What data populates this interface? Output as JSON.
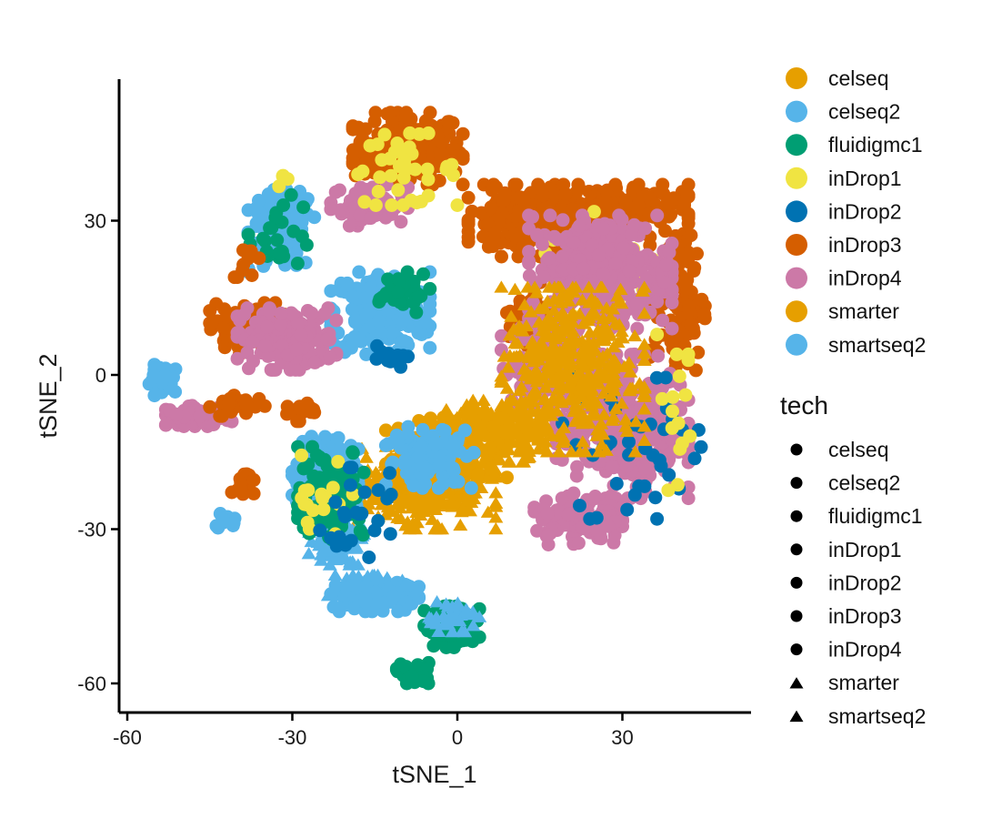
{
  "chart_data": {
    "type": "scatter",
    "xlabel": "tSNE_1",
    "ylabel": "tSNE_2",
    "xlim": [
      -62,
      52
    ],
    "ylim": [
      -66,
      58
    ],
    "x_ticks": [
      -60,
      -30,
      0,
      30
    ],
    "y_ticks": [
      -60,
      -30,
      0,
      30
    ],
    "x_tick_labels": [
      "-60",
      "-30",
      "0",
      "30"
    ],
    "y_tick_labels": [
      "-60",
      "-30",
      "0",
      "30"
    ],
    "grid": false,
    "legend_position": "right",
    "color_legend": {
      "title": "",
      "entries": [
        {
          "label": "celseq",
          "color": "#E69F00"
        },
        {
          "label": "celseq2",
          "color": "#56B4E9"
        },
        {
          "label": "fluidigmc1",
          "color": "#009E73"
        },
        {
          "label": "inDrop1",
          "color": "#F0E442"
        },
        {
          "label": "inDrop2",
          "color": "#0072B2"
        },
        {
          "label": "inDrop3",
          "color": "#D55E00"
        },
        {
          "label": "inDrop4",
          "color": "#CC79A7"
        },
        {
          "label": "smarter",
          "color": "#E69F00"
        },
        {
          "label": "smartseq2",
          "color": "#56B4E9"
        }
      ]
    },
    "shape_legend": {
      "title": "tech",
      "entries": [
        {
          "label": "celseq",
          "shape": "circle"
        },
        {
          "label": "celseq2",
          "shape": "circle"
        },
        {
          "label": "fluidigmc1",
          "shape": "circle"
        },
        {
          "label": "inDrop1",
          "shape": "circle"
        },
        {
          "label": "inDrop2",
          "shape": "circle"
        },
        {
          "label": "inDrop3",
          "shape": "circle"
        },
        {
          "label": "inDrop4",
          "shape": "circle"
        },
        {
          "label": "smarter",
          "shape": "triangle"
        },
        {
          "label": "smartseq2",
          "shape": "triangle"
        }
      ]
    },
    "clusters": [
      {
        "series": "inDrop3",
        "cx": -9,
        "cy": 44,
        "rx": 10,
        "ry": 7,
        "n": 220
      },
      {
        "series": "inDrop4",
        "cx": -16,
        "cy": 33,
        "rx": 7,
        "ry": 4,
        "n": 60
      },
      {
        "series": "inDrop1",
        "cx": -10,
        "cy": 40,
        "rx": 10,
        "ry": 7,
        "n": 40
      },
      {
        "series": "celseq2",
        "cx": -32,
        "cy": 28,
        "rx": 6,
        "ry": 8,
        "n": 150
      },
      {
        "series": "fluidigmc1",
        "cx": -32,
        "cy": 28,
        "rx": 6,
        "ry": 7,
        "n": 25
      },
      {
        "series": "inDrop3",
        "cx": -38,
        "cy": 22,
        "rx": 3,
        "ry": 3,
        "n": 10
      },
      {
        "series": "inDrop1",
        "cx": -31,
        "cy": 38,
        "rx": 2,
        "ry": 2,
        "n": 4
      },
      {
        "series": "celseq2",
        "cx": -14,
        "cy": 12,
        "rx": 9,
        "ry": 8,
        "n": 220
      },
      {
        "series": "fluidigmc1",
        "cx": -11,
        "cy": 16,
        "rx": 6,
        "ry": 4,
        "n": 35
      },
      {
        "series": "inDrop2",
        "cx": -13,
        "cy": 3,
        "rx": 4,
        "ry": 3,
        "n": 10
      },
      {
        "series": "inDrop3",
        "cx": -38,
        "cy": 9,
        "rx": 7,
        "ry": 5,
        "n": 90
      },
      {
        "series": "inDrop4",
        "cx": -31,
        "cy": 7,
        "rx": 9,
        "ry": 6,
        "n": 170
      },
      {
        "series": "celseq2",
        "cx": -53,
        "cy": -1,
        "rx": 3,
        "ry": 3,
        "n": 35
      },
      {
        "series": "inDrop4",
        "cx": -47,
        "cy": -8,
        "rx": 6,
        "ry": 2,
        "n": 60
      },
      {
        "series": "inDrop3",
        "cx": -40,
        "cy": -6,
        "rx": 5,
        "ry": 2,
        "n": 30
      },
      {
        "series": "inDrop3",
        "cx": -29,
        "cy": -7,
        "rx": 3,
        "ry": 2,
        "n": 15
      },
      {
        "series": "inDrop3",
        "cx": -39,
        "cy": -21,
        "rx": 2,
        "ry": 3,
        "n": 15
      },
      {
        "series": "celseq2",
        "cx": -42,
        "cy": -29,
        "rx": 2,
        "ry": 2,
        "n": 12
      },
      {
        "series": "inDrop3",
        "cx": 13,
        "cy": 30,
        "rx": 11,
        "ry": 7,
        "n": 220
      },
      {
        "series": "inDrop3",
        "cx": 28,
        "cy": 32,
        "rx": 14,
        "ry": 5,
        "n": 140
      },
      {
        "series": "inDrop3",
        "cx": 40,
        "cy": 14,
        "rx": 5,
        "ry": 14,
        "n": 110
      },
      {
        "series": "inDrop3",
        "cx": 14,
        "cy": 10,
        "rx": 5,
        "ry": 8,
        "n": 50
      },
      {
        "series": "inDrop1",
        "cx": 28,
        "cy": 20,
        "rx": 12,
        "ry": 14,
        "n": 30
      },
      {
        "series": "inDrop4",
        "cx": 26,
        "cy": 20,
        "rx": 13,
        "ry": 11,
        "n": 340
      },
      {
        "series": "inDrop4",
        "cx": 30,
        "cy": -10,
        "rx": 12,
        "ry": 14,
        "n": 340
      },
      {
        "series": "inDrop4",
        "cx": 17,
        "cy": 2,
        "rx": 9,
        "ry": 8,
        "n": 130
      },
      {
        "series": "inDrop4",
        "cx": 22,
        "cy": -28,
        "rx": 8,
        "ry": 5,
        "n": 110
      },
      {
        "series": "inDrop2",
        "cx": 32,
        "cy": -14,
        "rx": 14,
        "ry": 14,
        "n": 40
      },
      {
        "series": "smarter",
        "cx": 21,
        "cy": 1,
        "rx": 13,
        "ry": 16,
        "n": 420
      },
      {
        "series": "smarter",
        "cx": -6,
        "cy": -22,
        "rx": 13,
        "ry": 8,
        "n": 300
      },
      {
        "series": "smarter",
        "cx": 7,
        "cy": -11,
        "rx": 9,
        "ry": 6,
        "n": 200
      },
      {
        "series": "celseq",
        "cx": -2,
        "cy": -15,
        "rx": 11,
        "ry": 7,
        "n": 130
      },
      {
        "series": "celseq2",
        "cx": -24,
        "cy": -20,
        "rx": 6,
        "ry": 8,
        "n": 200
      },
      {
        "series": "smartseq2",
        "cx": -22,
        "cy": -32,
        "rx": 5,
        "ry": 5,
        "n": 90
      },
      {
        "series": "smartseq2",
        "cx": -17,
        "cy": -42,
        "rx": 7,
        "ry": 3,
        "n": 110
      },
      {
        "series": "celseq2",
        "cx": -15,
        "cy": -43,
        "rx": 8,
        "ry": 3,
        "n": 90
      },
      {
        "series": "celseq2",
        "cx": -5,
        "cy": -16,
        "rx": 8,
        "ry": 6,
        "n": 110
      },
      {
        "series": "fluidigmc1",
        "cx": -23,
        "cy": -23,
        "rx": 6,
        "ry": 9,
        "n": 110
      },
      {
        "series": "fluidigmc1",
        "cx": -1,
        "cy": -49,
        "rx": 5,
        "ry": 4,
        "n": 110
      },
      {
        "series": "fluidigmc1",
        "cx": -8,
        "cy": -58,
        "rx": 3,
        "ry": 2,
        "n": 45
      },
      {
        "series": "smartseq2",
        "cx": -1,
        "cy": -47,
        "rx": 5,
        "ry": 3,
        "n": 40
      },
      {
        "series": "inDrop1",
        "cx": -25,
        "cy": -25,
        "rx": 6,
        "ry": 10,
        "n": 18
      },
      {
        "series": "inDrop1",
        "cx": 40,
        "cy": -10,
        "rx": 3,
        "ry": 14,
        "n": 15
      },
      {
        "series": "inDrop2",
        "cx": -18,
        "cy": -28,
        "rx": 7,
        "ry": 10,
        "n": 25
      }
    ]
  }
}
